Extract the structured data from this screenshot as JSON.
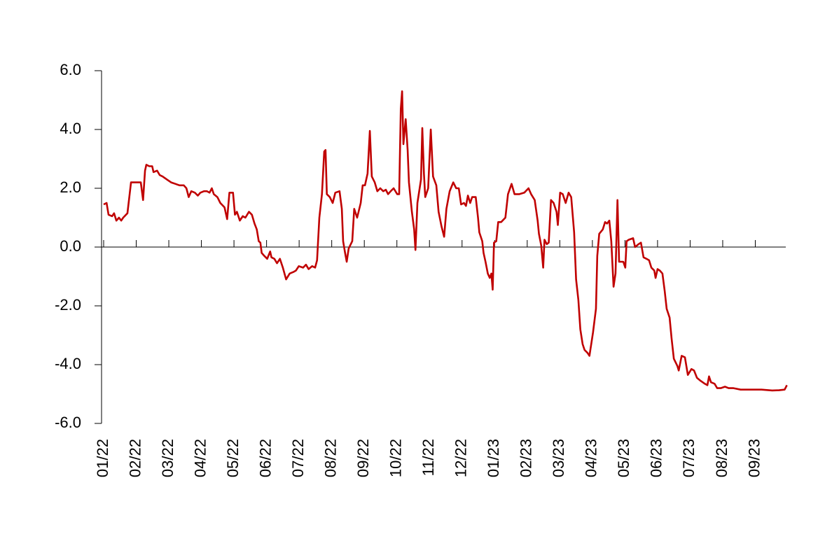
{
  "chart_data": {
    "type": "line",
    "color": "#c00000",
    "x": [
      0,
      0.09,
      0.15,
      0.26,
      0.32,
      0.39,
      0.47,
      0.54,
      0.6,
      0.73,
      0.84,
      1.06,
      1.14,
      1.21,
      1.27,
      1.31,
      1.4,
      1.49,
      1.53,
      1.64,
      1.72,
      1.81,
      1.94,
      2.07,
      2.2,
      2.33,
      2.46,
      2.54,
      2.61,
      2.69,
      2.8,
      2.89,
      2.97,
      3.08,
      3.17,
      3.25,
      3.32,
      3.38,
      3.49,
      3.58,
      3.71,
      3.79,
      3.86,
      3.97,
      4.03,
      4.09,
      4.18,
      4.27,
      4.35,
      4.46,
      4.55,
      4.63,
      4.7,
      4.76,
      4.81,
      4.85,
      4.93,
      5.02,
      5.11,
      5.15,
      5.24,
      5.32,
      5.41,
      5.5,
      5.6,
      5.71,
      5.82,
      5.9,
      5.99,
      6.12,
      6.21,
      6.29,
      6.4,
      6.49,
      6.55,
      6.62,
      6.7,
      6.77,
      6.81,
      6.85,
      6.94,
      7.03,
      7.11,
      7.24,
      7.31,
      7.35,
      7.41,
      7.46,
      7.52,
      7.63,
      7.69,
      7.78,
      7.89,
      7.95,
      8.02,
      8.1,
      8.17,
      8.23,
      8.32,
      8.4,
      8.49,
      8.58,
      8.66,
      8.73,
      8.81,
      8.9,
      9.01,
      9.07,
      9.12,
      9.16,
      9.2,
      9.27,
      9.33,
      9.37,
      9.46,
      9.53,
      9.57,
      9.63,
      9.74,
      9.78,
      9.83,
      9.87,
      9.96,
      10.04,
      10.11,
      10.21,
      10.28,
      10.37,
      10.45,
      10.52,
      10.62,
      10.73,
      10.82,
      10.9,
      10.97,
      11.06,
      11.12,
      11.18,
      11.25,
      11.31,
      11.42,
      11.49,
      11.53,
      11.62,
      11.66,
      11.72,
      11.79,
      11.85,
      11.9,
      11.94,
      11.98,
      12.05,
      12.11,
      12.2,
      12.33,
      12.41,
      12.52,
      12.61,
      12.76,
      12.91,
      13.04,
      13.12,
      13.23,
      13.32,
      13.36,
      13.43,
      13.49,
      13.53,
      13.6,
      13.66,
      13.73,
      13.81,
      13.9,
      13.94,
      14.01,
      14.09,
      14.18,
      14.27,
      14.35,
      14.44,
      14.5,
      14.57,
      14.63,
      14.7,
      14.76,
      14.85,
      14.91,
      15.02,
      15.11,
      15.15,
      15.21,
      15.32,
      15.39,
      15.45,
      15.52,
      15.58,
      15.65,
      15.71,
      15.77,
      15.82,
      15.95,
      16.01,
      16.05,
      16.12,
      16.25,
      16.31,
      16.42,
      16.49,
      16.57,
      16.66,
      16.74,
      16.81,
      16.9,
      16.94,
      17.0,
      17.07,
      17.15,
      17.22,
      17.28,
      17.37,
      17.43,
      17.5,
      17.61,
      17.65,
      17.74,
      17.84,
      17.93,
      18.04,
      18.12,
      18.21,
      18.32,
      18.45,
      18.53,
      18.58,
      18.64,
      18.75,
      18.83,
      18.94,
      19.07,
      19.18,
      19.33,
      19.55,
      19.87,
      20.19,
      20.52,
      20.73,
      20.9,
      20.97
    ],
    "values": [
      1.45,
      1.5,
      1.1,
      1.05,
      1.15,
      0.9,
      1.0,
      0.9,
      1.0,
      1.15,
      2.2,
      2.2,
      2.2,
      1.6,
      2.6,
      2.8,
      2.75,
      2.75,
      2.55,
      2.6,
      2.45,
      2.4,
      2.3,
      2.2,
      2.15,
      2.1,
      2.1,
      2.0,
      1.7,
      1.9,
      1.85,
      1.75,
      1.85,
      1.9,
      1.9,
      1.85,
      2.0,
      1.8,
      1.7,
      1.5,
      1.35,
      0.95,
      1.85,
      1.85,
      1.1,
      1.2,
      0.9,
      1.05,
      1.0,
      1.2,
      1.1,
      0.8,
      0.6,
      0.2,
      0.15,
      -0.2,
      -0.3,
      -0.4,
      -0.15,
      -0.35,
      -0.4,
      -0.55,
      -0.4,
      -0.7,
      -1.1,
      -0.9,
      -0.85,
      -0.8,
      -0.65,
      -0.7,
      -0.6,
      -0.75,
      -0.65,
      -0.7,
      -0.45,
      1.0,
      1.8,
      3.25,
      3.3,
      1.8,
      1.7,
      1.5,
      1.85,
      1.9,
      1.3,
      0.2,
      -0.2,
      -0.5,
      -0.05,
      0.2,
      1.3,
      1.0,
      1.5,
      2.1,
      2.1,
      2.5,
      3.95,
      2.4,
      2.2,
      1.9,
      2.0,
      1.9,
      1.95,
      1.8,
      1.9,
      2.0,
      1.8,
      1.8,
      4.7,
      5.3,
      3.5,
      4.35,
      3.3,
      2.2,
      1.2,
      0.6,
      -0.1,
      1.5,
      2.3,
      4.05,
      2.5,
      1.7,
      2.0,
      4.0,
      2.4,
      2.1,
      1.2,
      0.7,
      0.35,
      1.3,
      1.9,
      2.2,
      2.0,
      2.0,
      1.45,
      1.5,
      1.4,
      1.75,
      1.5,
      1.7,
      1.7,
      1.0,
      0.5,
      0.2,
      -0.2,
      -0.5,
      -0.9,
      -1.05,
      -0.9,
      -1.45,
      0.15,
      0.2,
      0.85,
      0.85,
      1.0,
      1.8,
      2.15,
      1.8,
      1.8,
      1.85,
      2.0,
      1.8,
      1.6,
      0.9,
      0.45,
      0.05,
      -0.7,
      0.25,
      0.1,
      0.15,
      1.6,
      1.5,
      1.2,
      0.75,
      1.85,
      1.8,
      1.5,
      1.85,
      1.7,
      0.5,
      -1.1,
      -1.8,
      -2.8,
      -3.3,
      -3.5,
      -3.6,
      -3.7,
      -2.9,
      -2.1,
      -0.3,
      0.45,
      0.6,
      0.85,
      0.8,
      0.9,
      0.2,
      -1.35,
      -0.9,
      1.6,
      -0.5,
      -0.5,
      -0.7,
      0.2,
      0.25,
      0.3,
      0.0,
      0.1,
      0.15,
      -0.35,
      -0.4,
      -0.45,
      -0.7,
      -0.8,
      -1.05,
      -0.75,
      -0.8,
      -0.9,
      -1.5,
      -2.1,
      -2.4,
      -3.1,
      -3.8,
      -4.05,
      -4.2,
      -3.7,
      -3.75,
      -4.35,
      -4.15,
      -4.2,
      -4.45,
      -4.55,
      -4.65,
      -4.7,
      -4.4,
      -4.6,
      -4.65,
      -4.8,
      -4.8,
      -4.75,
      -4.8,
      -4.8,
      -4.85,
      -4.85,
      -4.85,
      -4.88,
      -4.87,
      -4.85,
      -4.7
    ],
    "xlim": [
      0,
      21
    ],
    "xticks": [
      {
        "value": 0,
        "label": "01/22"
      },
      {
        "value": 1,
        "label": "02/22"
      },
      {
        "value": 2,
        "label": "03/22"
      },
      {
        "value": 3,
        "label": "04/22"
      },
      {
        "value": 4,
        "label": "05/22"
      },
      {
        "value": 5,
        "label": "06/22"
      },
      {
        "value": 6,
        "label": "07/22"
      },
      {
        "value": 7,
        "label": "08/22"
      },
      {
        "value": 8,
        "label": "09/22"
      },
      {
        "value": 9,
        "label": "10/22"
      },
      {
        "value": 10,
        "label": "11/22"
      },
      {
        "value": 11,
        "label": "12/22"
      },
      {
        "value": 12,
        "label": "01/23"
      },
      {
        "value": 13,
        "label": "02/23"
      },
      {
        "value": 14,
        "label": "03/23"
      },
      {
        "value": 15,
        "label": "04/23"
      },
      {
        "value": 16,
        "label": "05/23"
      },
      {
        "value": 17,
        "label": "06/23"
      },
      {
        "value": 18,
        "label": "07/23"
      },
      {
        "value": 19,
        "label": "08/23"
      },
      {
        "value": 20,
        "label": "09/23"
      }
    ],
    "ylim": [
      -6,
      6
    ],
    "yticks": [
      {
        "value": -6,
        "label": "-6.0"
      },
      {
        "value": -4,
        "label": "-4.0"
      },
      {
        "value": -2,
        "label": "-2.0"
      },
      {
        "value": 0,
        "label": "0.0"
      },
      {
        "value": 2,
        "label": "2.0"
      },
      {
        "value": 4,
        "label": "4.0"
      },
      {
        "value": 6,
        "label": "6.0"
      }
    ]
  }
}
